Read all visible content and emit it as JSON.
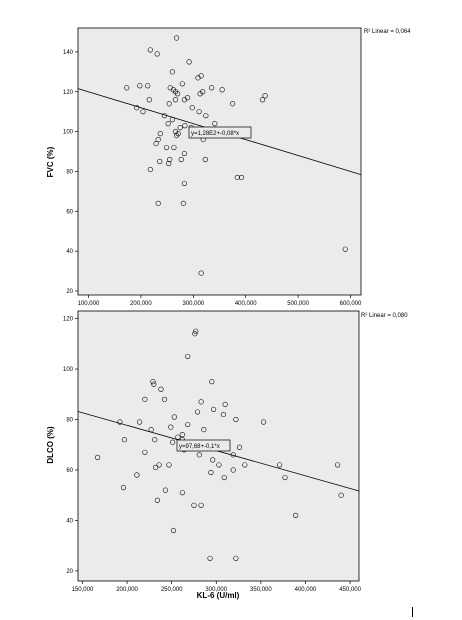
{
  "chart_data": [
    {
      "type": "scatter",
      "title": "",
      "xlabel": "",
      "ylabel": "FVC (%)",
      "xlim": [
        80000,
        620000
      ],
      "ylim": [
        18,
        152
      ],
      "xticks": [
        100000,
        200000,
        300000,
        400000,
        500000,
        600000
      ],
      "xtick_labels": [
        "100,000",
        "200,000",
        "300,000",
        "400,000",
        "500,000",
        "600,000"
      ],
      "yticks": [
        20,
        40,
        60,
        80,
        100,
        120,
        140
      ],
      "ytick_labels": [
        "20",
        "40",
        "60",
        "80",
        "100",
        "120",
        "140"
      ],
      "grid": false,
      "r2_label": "R² Linear = 0,064",
      "fit_label": "y=1,28E2+-0,08*x",
      "fit_line": {
        "intercept": 128,
        "slope": -8e-05
      },
      "points": [
        [
          218000,
          141
        ],
        [
          231000,
          139
        ],
        [
          268000,
          147
        ],
        [
          292000,
          135
        ],
        [
          260000,
          130
        ],
        [
          315000,
          128
        ],
        [
          309000,
          127
        ],
        [
          173000,
          122
        ],
        [
          198000,
          123
        ],
        [
          213000,
          123
        ],
        [
          256000,
          122
        ],
        [
          262000,
          121
        ],
        [
          266000,
          120
        ],
        [
          270000,
          119
        ],
        [
          279000,
          124
        ],
        [
          318000,
          120
        ],
        [
          335000,
          122
        ],
        [
          355000,
          121
        ],
        [
          437000,
          118
        ],
        [
          432000,
          116
        ],
        [
          192000,
          112
        ],
        [
          204000,
          110
        ],
        [
          216000,
          116
        ],
        [
          254000,
          114
        ],
        [
          266000,
          116
        ],
        [
          283000,
          116
        ],
        [
          289000,
          117
        ],
        [
          313000,
          119
        ],
        [
          298000,
          112
        ],
        [
          311000,
          110
        ],
        [
          324000,
          108
        ],
        [
          341000,
          104
        ],
        [
          375000,
          114
        ],
        [
          245000,
          108
        ],
        [
          252000,
          104
        ],
        [
          260000,
          106
        ],
        [
          266000,
          100
        ],
        [
          275000,
          102
        ],
        [
          284000,
          103
        ],
        [
          296000,
          102
        ],
        [
          319000,
          96
        ],
        [
          237000,
          99
        ],
        [
          233000,
          96
        ],
        [
          229000,
          94
        ],
        [
          249000,
          92
        ],
        [
          255000,
          86
        ],
        [
          253000,
          84
        ],
        [
          277000,
          86
        ],
        [
          283000,
          89
        ],
        [
          263000,
          92
        ],
        [
          268000,
          98
        ],
        [
          271000,
          99
        ],
        [
          323000,
          86
        ],
        [
          218000,
          81
        ],
        [
          236000,
          85
        ],
        [
          283000,
          74
        ],
        [
          384000,
          77
        ],
        [
          392000,
          77
        ],
        [
          233000,
          64
        ],
        [
          281000,
          64
        ],
        [
          315000,
          29
        ],
        [
          590000,
          41
        ]
      ]
    },
    {
      "type": "scatter",
      "title": "",
      "xlabel": "KL-6 (U/ml)",
      "ylabel": "DLCO (%)",
      "xlim": [
        145000,
        460000
      ],
      "ylim": [
        16,
        123
      ],
      "xticks": [
        150000,
        200000,
        250000,
        300000,
        350000,
        400000,
        450000
      ],
      "xtick_labels": [
        "150,000",
        "200,000",
        "250,000",
        "300,000",
        "350,000",
        "400,000",
        "450,000"
      ],
      "yticks": [
        20,
        40,
        60,
        80,
        100,
        120
      ],
      "ytick_labels": [
        "20",
        "40",
        "60",
        "80",
        "100",
        "120"
      ],
      "grid": false,
      "r2_label": "R² Linear = 0,080",
      "fit_label": "y=97,68+-0,1*x",
      "fit_line": {
        "intercept": 97.68,
        "slope": -0.0001
      },
      "points": [
        [
          277000,
          115
        ],
        [
          276000,
          114
        ],
        [
          268000,
          105
        ],
        [
          230000,
          94
        ],
        [
          229000,
          95
        ],
        [
          295000,
          95
        ],
        [
          238000,
          92
        ],
        [
          220000,
          88
        ],
        [
          242000,
          88
        ],
        [
          283000,
          87
        ],
        [
          310000,
          86
        ],
        [
          297000,
          84
        ],
        [
          253000,
          81
        ],
        [
          279000,
          83
        ],
        [
          308000,
          82
        ],
        [
          192000,
          79
        ],
        [
          214000,
          79
        ],
        [
          322000,
          80
        ],
        [
          249000,
          77
        ],
        [
          353000,
          79
        ],
        [
          227000,
          76
        ],
        [
          268000,
          78
        ],
        [
          286000,
          76
        ],
        [
          257000,
          73
        ],
        [
          262000,
          72
        ],
        [
          262000,
          74
        ],
        [
          251000,
          71
        ],
        [
          270000,
          69
        ],
        [
          292000,
          70
        ],
        [
          326000,
          69
        ],
        [
          319000,
          66
        ],
        [
          197000,
          72
        ],
        [
          220000,
          67
        ],
        [
          231000,
          72
        ],
        [
          264000,
          68
        ],
        [
          281000,
          66
        ],
        [
          296000,
          64
        ],
        [
          167000,
          65
        ],
        [
          247000,
          62
        ],
        [
          232000,
          61
        ],
        [
          236000,
          62
        ],
        [
          303000,
          62
        ],
        [
          332000,
          62
        ],
        [
          211000,
          58
        ],
        [
          294000,
          59
        ],
        [
          319000,
          60
        ],
        [
          377000,
          57
        ],
        [
          436000,
          62
        ],
        [
          371000,
          62
        ],
        [
          243000,
          52
        ],
        [
          196000,
          53
        ],
        [
          262000,
          51
        ],
        [
          234000,
          48
        ],
        [
          275000,
          46
        ],
        [
          283000,
          46
        ],
        [
          309000,
          57
        ],
        [
          440000,
          50
        ],
        [
          389000,
          42
        ],
        [
          252000,
          36
        ],
        [
          293000,
          25
        ],
        [
          322000,
          25
        ]
      ]
    }
  ]
}
